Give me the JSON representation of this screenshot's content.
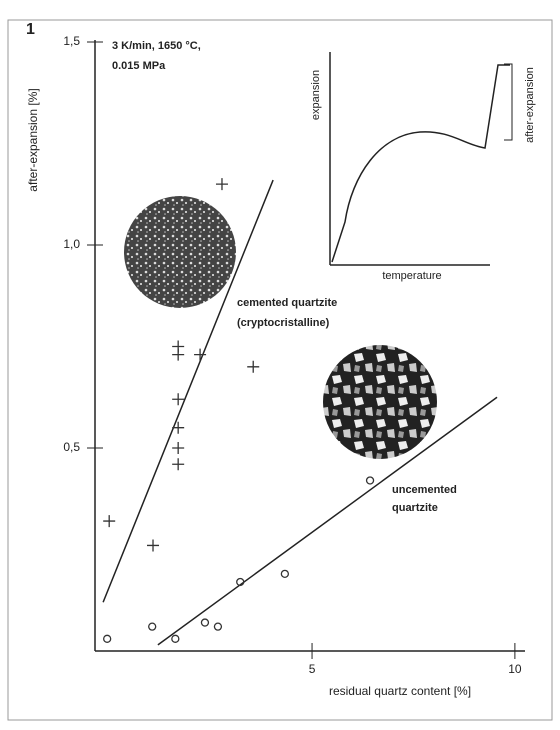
{
  "chart_data": {
    "type": "scatter",
    "panel_label": "1",
    "title_lines": [
      "3 K/min, 1650 °C,",
      "0.015 MPa"
    ],
    "x_label": "residual quartz content [%]",
    "y_label": "after-expansion [%]",
    "xlim": [
      -0.35,
      10.2
    ],
    "ylim": [
      0,
      1.5
    ],
    "xticks": [
      5,
      10
    ],
    "yticks": [
      {
        "value": 0.5,
        "label": "0,5"
      },
      {
        "value": 1.0,
        "label": "1,0"
      },
      {
        "value": 1.5,
        "label": "1,5"
      }
    ],
    "series": [
      {
        "marker": "plus",
        "color": "#333333",
        "x": [
          0,
          1.08,
          1.7,
          1.7,
          1.7,
          1.7,
          1.7,
          1.7,
          2.24,
          3.55,
          2.78
        ],
        "values": [
          0.32,
          0.26,
          0.46,
          0.5,
          0.55,
          0.62,
          0.73,
          0.75,
          0.73,
          0.7,
          1.15
        ]
      },
      {
        "marker": "circle",
        "color": "#333333",
        "x": [
          -0.05,
          1.06,
          1.63,
          2.36,
          2.68,
          3.23,
          4.33,
          6.43
        ],
        "values": [
          0.03,
          0.06,
          0.03,
          0.07,
          0.06,
          0.17,
          0.19,
          0.42
        ]
      }
    ],
    "trend_lines": [
      {
        "x": [
          -0.15,
          4.04
        ],
        "values": [
          0.12,
          1.16
        ]
      },
      {
        "x": [
          1.2,
          9.56
        ],
        "values": [
          0.015,
          0.625
        ]
      }
    ],
    "annotations": [
      {
        "lines": [
          "cemented quartzite",
          "(cryptocristalline)"
        ]
      },
      {
        "lines": [
          "uncemented",
          "quartzite"
        ]
      }
    ],
    "inset": {
      "y_label": "expansion",
      "x_label": "temperature",
      "bracket_label": "after-expansion"
    }
  }
}
